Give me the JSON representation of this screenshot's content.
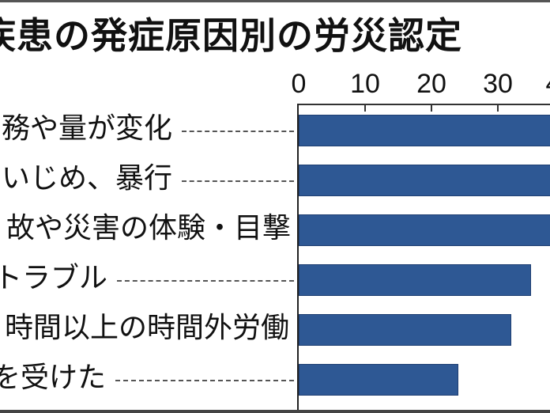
{
  "chart_data": {
    "type": "bar",
    "orientation": "horizontal",
    "title": "疾患の発症原因別の労災認定",
    "xlabel": "",
    "ylabel": "",
    "x_ticks": [
      "0",
      "10",
      "20",
      "30",
      "4"
    ],
    "xlim": [
      0,
      38
    ],
    "grid": false,
    "categories": [
      "務や量が変化",
      "いじめ、暴行",
      "故や災害の体験・目撃",
      "トラブル",
      "時間以上の時間外労働",
      "を受けた"
    ],
    "values": [
      40,
      40,
      40,
      35,
      32,
      24
    ],
    "note": "Top three bars extend past visible crop edge (values ≥ 38); labels truncated at left edge of image"
  },
  "colors": {
    "bar": "#2e5894",
    "text": "#111111"
  }
}
